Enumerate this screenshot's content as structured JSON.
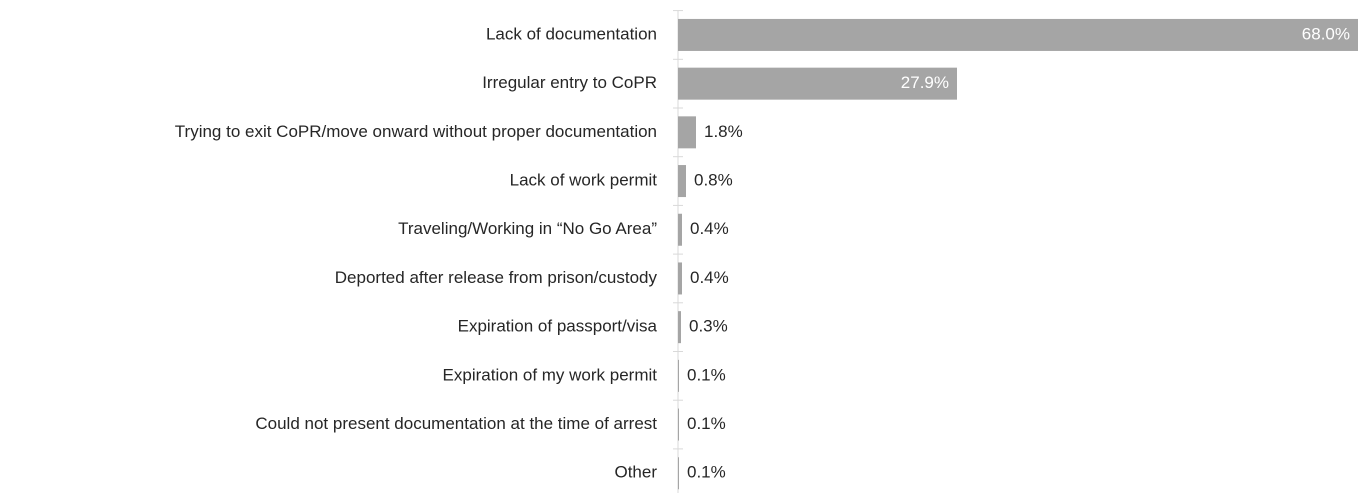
{
  "chart_data": {
    "type": "barh",
    "categories": [
      "Lack of documentation",
      "Irregular entry to CoPR",
      "Trying to exit CoPR/move onward without proper documentation",
      "Lack of work permit",
      "Traveling/Working in “No Go Area”",
      "Deported after release from prison/custody",
      "Expiration of passport/visa",
      "Expiration of my work permit",
      "Could not present documentation at the time of arrest",
      "Other"
    ],
    "values": [
      68.0,
      27.9,
      1.8,
      0.8,
      0.4,
      0.4,
      0.3,
      0.1,
      0.1,
      0.1
    ],
    "value_labels": [
      "68.0%",
      "27.9%",
      "1.8%",
      "0.8%",
      "0.4%",
      "0.4%",
      "0.3%",
      "0.1%",
      "0.1%",
      "0.1%"
    ],
    "color": "#a5a5a5",
    "xlim": [
      0,
      68
    ]
  }
}
